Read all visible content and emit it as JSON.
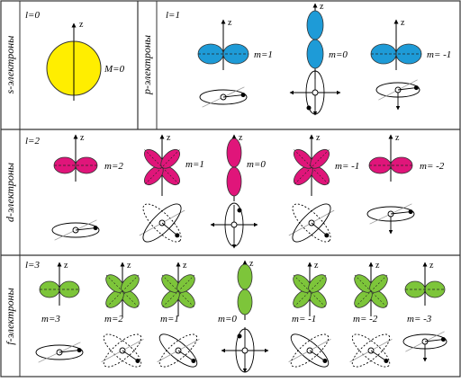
{
  "sections": {
    "s": {
      "title": "s-электроны",
      "l_label": "l=0",
      "axis": "z",
      "m_labels": [
        "M=0"
      ]
    },
    "p": {
      "title": "p-электроны",
      "l_label": "l=1",
      "axis": "z",
      "m_labels": [
        "m=1",
        "m=0",
        "m= -1"
      ]
    },
    "d": {
      "title": "d-электроны",
      "l_label": "l=2",
      "axis": "z",
      "m_labels": [
        "m=2",
        "m=1",
        "m=0",
        "m= -1",
        "m= -2"
      ]
    },
    "f": {
      "title": "f-электроны",
      "l_label": "l=3",
      "axis": "z",
      "m_labels": [
        "m=3",
        "m=2",
        "m=1",
        "m=0",
        "m= -1",
        "m= -2",
        "m= -3"
      ]
    }
  },
  "colors": {
    "s": "#ffee00",
    "p": "#1e9bd7",
    "d": "#e0157a",
    "f": "#7dc53a",
    "border": "#333333"
  }
}
